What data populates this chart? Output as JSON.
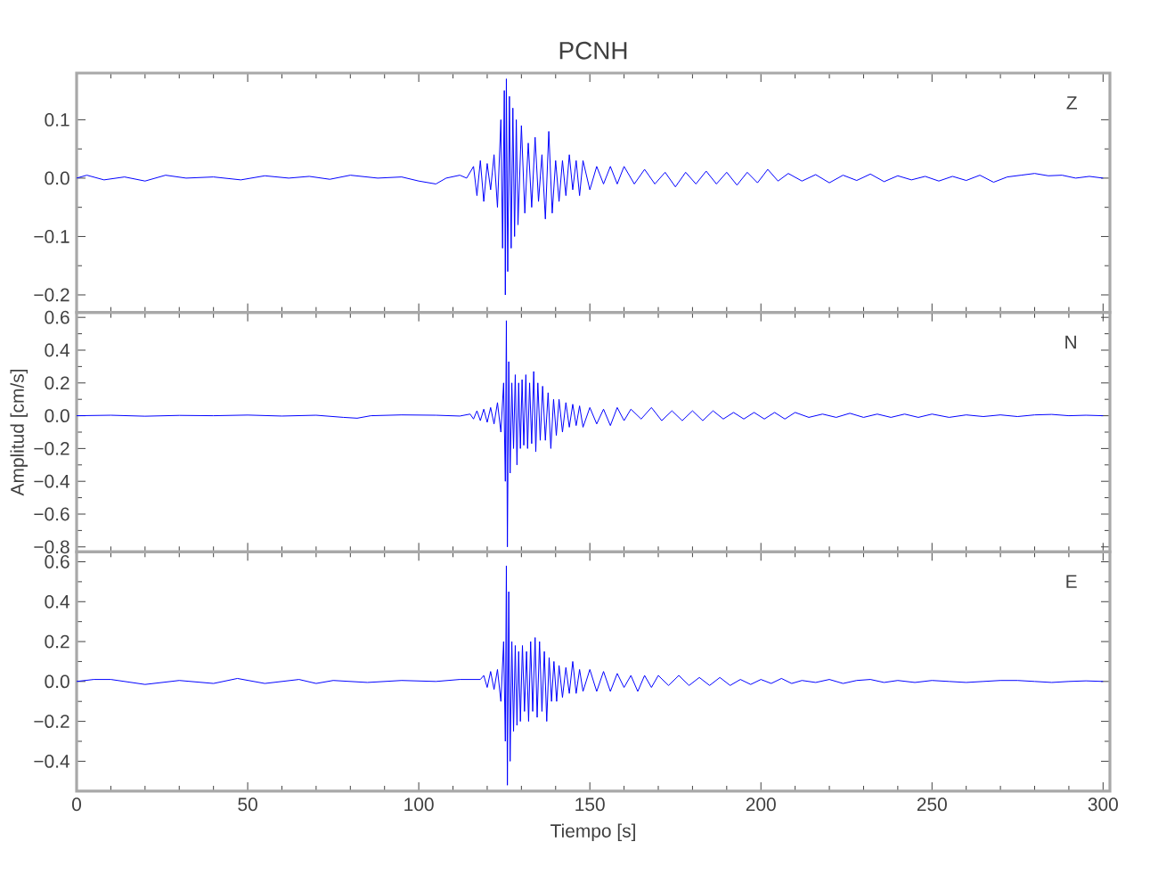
{
  "chart_data": [
    {
      "type": "line",
      "title": "PCNH",
      "annotations": [
        "Z"
      ],
      "xlim": [
        0,
        302
      ],
      "ylim": [
        -0.23,
        0.18
      ],
      "xticks": [
        0,
        50,
        100,
        150,
        200,
        250,
        300
      ],
      "yticks": [
        {
          "value": -0.2,
          "label": "−0.2"
        },
        {
          "value": -0.1,
          "label": "−0.1"
        },
        {
          "value": 0,
          "label": "0.0"
        },
        0.1
      ],
      "tick_labels": "y",
      "series": [
        {
          "color": "#0000ff",
          "x": [
            0,
            3,
            8,
            14,
            20,
            26,
            32,
            40,
            48,
            55,
            62,
            68,
            74,
            80,
            88,
            95,
            100,
            105,
            108,
            112,
            114,
            116,
            117,
            118,
            119,
            120,
            121,
            122,
            123,
            124,
            124.5,
            125,
            125.3,
            125.6,
            126,
            126.5,
            127,
            127.5,
            128,
            128.5,
            129,
            130,
            131,
            132,
            133,
            134,
            135,
            136,
            137,
            138,
            139,
            140,
            141,
            142,
            143,
            144,
            145,
            146,
            147,
            148,
            150,
            152,
            154,
            156,
            158,
            160,
            163,
            166,
            169,
            172,
            175,
            178,
            181,
            184,
            187,
            190,
            193,
            196,
            199,
            202,
            205,
            208,
            212,
            216,
            220,
            224,
            228,
            232,
            236,
            240,
            244,
            248,
            252,
            256,
            260,
            264,
            268,
            272,
            276,
            280,
            284,
            288,
            292,
            296,
            300
          ],
          "values": [
            0.0,
            0.005,
            -0.003,
            0.002,
            -0.005,
            0.005,
            0.0,
            0.002,
            -0.003,
            0.004,
            0.0,
            0.003,
            -0.002,
            0.005,
            0.0,
            0.002,
            -0.005,
            -0.01,
            0.0,
            0.005,
            0.0,
            0.02,
            -0.03,
            0.03,
            -0.04,
            0.025,
            -0.02,
            0.04,
            -0.05,
            0.1,
            -0.12,
            0.15,
            -0.2,
            0.17,
            -0.16,
            0.14,
            -0.12,
            0.12,
            -0.1,
            0.1,
            -0.08,
            0.09,
            -0.06,
            0.06,
            -0.05,
            0.07,
            -0.04,
            0.04,
            -0.07,
            0.08,
            -0.06,
            0.03,
            -0.04,
            0.03,
            -0.03,
            0.04,
            -0.02,
            0.03,
            -0.03,
            0.03,
            -0.02,
            0.02,
            -0.01,
            0.02,
            -0.01,
            0.02,
            -0.01,
            0.015,
            -0.01,
            0.01,
            -0.015,
            0.01,
            -0.01,
            0.012,
            -0.01,
            0.01,
            -0.012,
            0.01,
            -0.008,
            0.015,
            -0.005,
            0.008,
            -0.005,
            0.006,
            -0.008,
            0.005,
            -0.004,
            0.007,
            -0.006,
            0.004,
            -0.003,
            0.003,
            -0.005,
            0.003,
            -0.004,
            0.005,
            -0.007,
            0.002,
            0.005,
            0.008,
            0.004,
            0.005,
            0.0,
            0.003,
            0.0
          ]
        }
      ]
    },
    {
      "type": "line",
      "ylabel": "Amplitud [cm/s]",
      "annotations": [
        "N"
      ],
      "xlim": [
        0,
        302
      ],
      "ylim": [
        -0.83,
        0.63
      ],
      "xticks": [
        0,
        50,
        100,
        150,
        200,
        250,
        300
      ],
      "yticks": [
        {
          "value": -0.8,
          "label": "−0.8"
        },
        {
          "value": -0.6,
          "label": "−0.6"
        },
        {
          "value": -0.4,
          "label": "−0.4"
        },
        {
          "value": -0.2,
          "label": "−0.2"
        },
        {
          "value": 0,
          "label": "0.0"
        },
        0.2,
        0.4,
        0.6
      ],
      "tick_labels": "y",
      "series": [
        {
          "color": "#0000ff",
          "x": [
            0,
            10,
            20,
            30,
            40,
            50,
            60,
            70,
            78,
            82,
            86,
            95,
            105,
            112,
            115,
            116,
            117,
            118,
            119,
            120,
            121,
            122,
            123,
            124,
            124.8,
            125.3,
            125.6,
            125.9,
            126.3,
            126.7,
            127.2,
            127.7,
            128.2,
            128.7,
            129.2,
            129.7,
            130.2,
            130.7,
            131.3,
            131.8,
            132.4,
            133,
            133.6,
            134.2,
            134.8,
            135.5,
            136.2,
            137,
            137.8,
            138.6,
            139.4,
            140.2,
            141,
            142,
            143,
            144,
            145,
            146,
            147,
            148,
            150,
            152,
            154,
            156,
            158,
            160,
            162,
            165,
            168,
            171,
            174,
            177,
            180,
            183,
            186,
            189,
            192,
            195,
            198,
            201,
            204,
            207,
            210,
            214,
            218,
            222,
            226,
            230,
            234,
            238,
            242,
            246,
            250,
            255,
            260,
            265,
            270,
            275,
            280,
            285,
            290,
            295,
            300
          ],
          "values": [
            0.0,
            0.003,
            -0.003,
            0.002,
            0.0,
            0.004,
            -0.002,
            0.003,
            -0.01,
            -0.015,
            0.0,
            0.005,
            0.003,
            -0.002,
            0.01,
            -0.02,
            0.03,
            -0.03,
            0.04,
            -0.04,
            0.05,
            -0.05,
            0.08,
            -0.1,
            0.2,
            -0.4,
            0.58,
            -0.8,
            0.33,
            -0.35,
            0.2,
            -0.2,
            0.25,
            -0.3,
            0.2,
            -0.2,
            0.22,
            -0.18,
            0.25,
            -0.2,
            0.2,
            -0.17,
            0.27,
            -0.22,
            0.2,
            -0.15,
            0.18,
            -0.15,
            0.14,
            -0.2,
            0.1,
            -0.12,
            0.1,
            -0.1,
            0.08,
            -0.07,
            0.07,
            -0.06,
            0.06,
            -0.07,
            0.05,
            -0.05,
            0.04,
            -0.06,
            0.05,
            -0.03,
            0.04,
            -0.02,
            0.05,
            -0.03,
            0.03,
            -0.03,
            0.03,
            -0.03,
            0.03,
            -0.02,
            0.02,
            -0.02,
            0.02,
            -0.02,
            0.02,
            -0.02,
            0.02,
            -0.01,
            0.01,
            -0.01,
            0.015,
            -0.01,
            0.01,
            -0.01,
            0.01,
            -0.01,
            0.01,
            -0.01,
            0.005,
            -0.005,
            0.005,
            -0.005,
            0.005,
            0.008,
            0.0,
            0.003,
            0.0
          ]
        }
      ]
    },
    {
      "type": "line",
      "xlabel": "Tiempo [s]",
      "annotations": [
        "E"
      ],
      "xlim": [
        0,
        302
      ],
      "ylim": [
        -0.55,
        0.65
      ],
      "xticks": [
        0,
        50,
        100,
        150,
        200,
        250,
        300
      ],
      "yticks": [
        {
          "value": -0.4,
          "label": "−0.4"
        },
        {
          "value": -0.2,
          "label": "−0.2"
        },
        {
          "value": 0,
          "label": "0.0"
        },
        0.2,
        0.4,
        0.6
      ],
      "series": [
        {
          "color": "#0000ff",
          "x": [
            0,
            5,
            10,
            20,
            30,
            40,
            47,
            55,
            65,
            70,
            75,
            85,
            95,
            105,
            112,
            118,
            119,
            120,
            121,
            122,
            123,
            124,
            124.8,
            125.3,
            125.6,
            125.9,
            126.3,
            126.7,
            127.2,
            127.7,
            128.2,
            128.7,
            129.2,
            129.7,
            130.3,
            130.9,
            131.5,
            132.1,
            132.7,
            133.3,
            134,
            134.6,
            135.3,
            136,
            136.7,
            137.4,
            138.1,
            138.8,
            139.5,
            140.3,
            141,
            142,
            143,
            144,
            145,
            146,
            147,
            148,
            150,
            152,
            154,
            156,
            158,
            160,
            162,
            164,
            166,
            168,
            170,
            173,
            176,
            179,
            182,
            185,
            188,
            191,
            194,
            197,
            200,
            203,
            206,
            209,
            212,
            216,
            220,
            224,
            228,
            232,
            236,
            240,
            245,
            250,
            255,
            260,
            265,
            270,
            275,
            280,
            285,
            290,
            295,
            300
          ],
          "values": [
            0.0,
            0.01,
            0.01,
            -0.015,
            0.005,
            -0.01,
            0.015,
            -0.01,
            0.01,
            -0.01,
            0.005,
            -0.005,
            0.005,
            0.0,
            0.01,
            0.01,
            0.03,
            -0.03,
            0.05,
            -0.04,
            0.06,
            -0.1,
            0.2,
            -0.3,
            0.58,
            -0.52,
            0.45,
            -0.4,
            0.2,
            -0.25,
            0.18,
            -0.22,
            0.15,
            -0.2,
            0.18,
            -0.15,
            0.15,
            -0.2,
            0.2,
            -0.15,
            0.22,
            -0.18,
            0.2,
            -0.15,
            0.15,
            -0.2,
            0.12,
            -0.1,
            0.1,
            -0.1,
            0.08,
            -0.08,
            0.07,
            -0.06,
            0.1,
            -0.06,
            0.06,
            -0.05,
            0.06,
            -0.05,
            0.05,
            -0.05,
            0.04,
            -0.03,
            0.03,
            -0.05,
            0.03,
            -0.03,
            0.03,
            -0.02,
            0.03,
            -0.02,
            0.02,
            -0.02,
            0.02,
            -0.02,
            0.01,
            -0.015,
            0.01,
            -0.01,
            0.015,
            -0.01,
            0.005,
            -0.005,
            0.01,
            -0.01,
            0.005,
            0.01,
            -0.005,
            0.005,
            -0.005,
            0.005,
            0.0,
            -0.005,
            0.0,
            0.005,
            0.005,
            0.0,
            -0.005,
            0.0,
            0.003,
            0.0
          ]
        }
      ]
    }
  ]
}
